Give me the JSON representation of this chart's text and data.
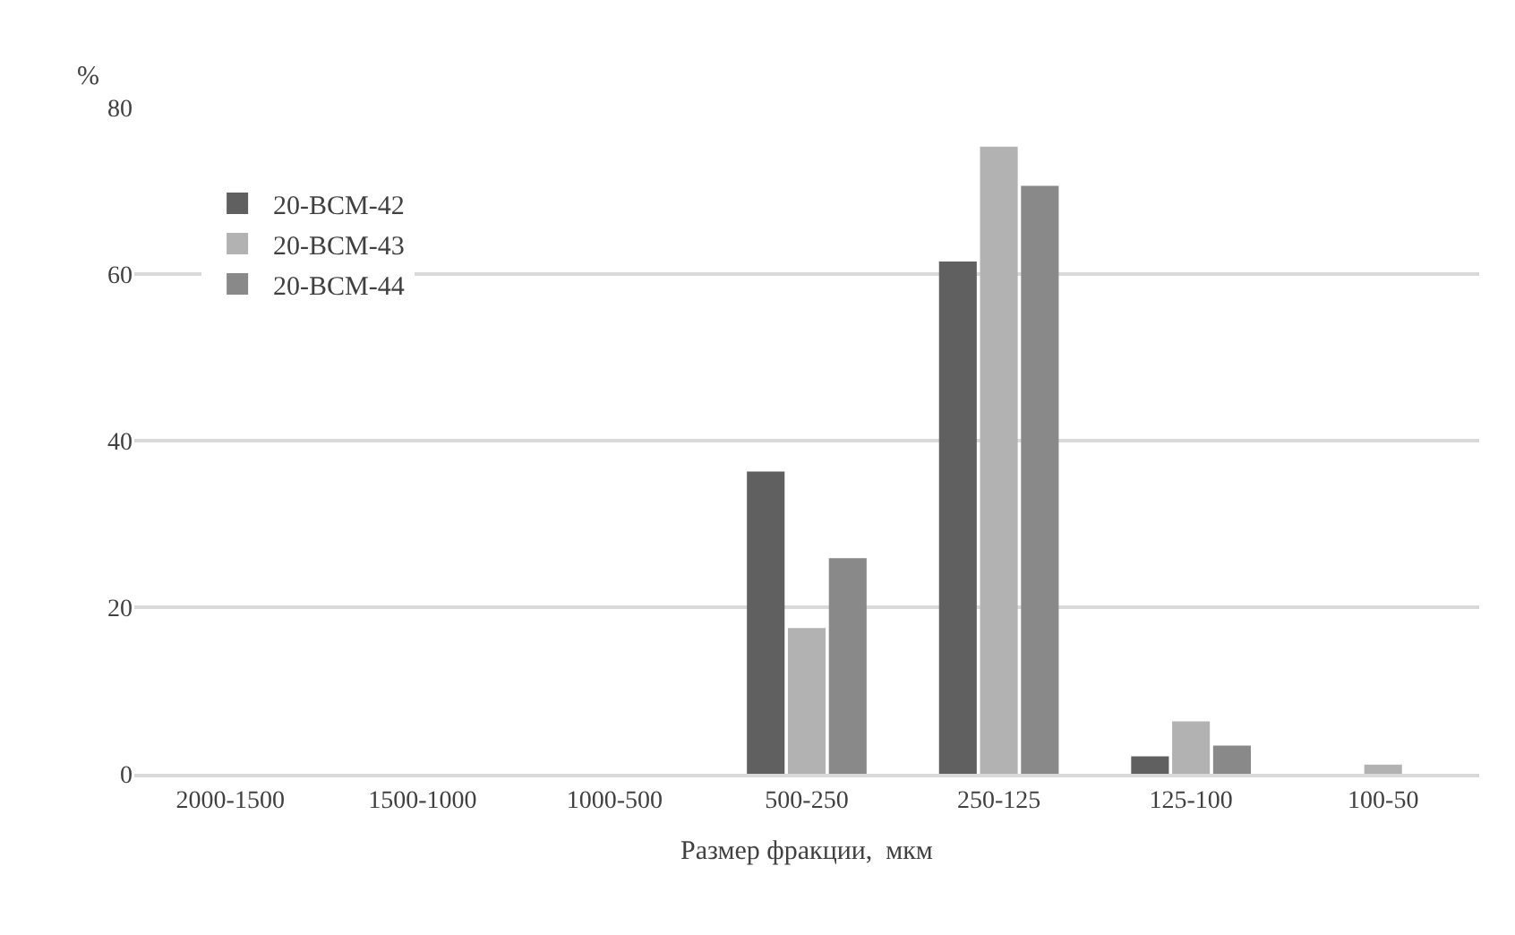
{
  "chart_data": {
    "type": "bar",
    "xlabel": "Размер фракции,  мкм",
    "ylabel": "%",
    "categories": [
      "2000-1500",
      "1500-1000",
      "1000-500",
      "500-250",
      "250-125",
      "125-100",
      "100-50"
    ],
    "series": [
      {
        "name": "20-BCM-42",
        "color": "#606060",
        "values": [
          0,
          0,
          0,
          36.3,
          61.5,
          2.1,
          0
        ]
      },
      {
        "name": "20-BCM-43",
        "color": "#b2b2b2",
        "values": [
          0,
          0,
          0,
          17.5,
          75.3,
          6.3,
          1.1
        ]
      },
      {
        "name": "20-BCM-44",
        "color": "#898989",
        "values": [
          0,
          0,
          0,
          25.9,
          70.6,
          3.4,
          0
        ]
      }
    ],
    "ylim": [
      0,
      80
    ],
    "yticks": [
      0,
      20,
      40,
      60,
      80
    ],
    "grid": "y",
    "legend": "top left"
  }
}
